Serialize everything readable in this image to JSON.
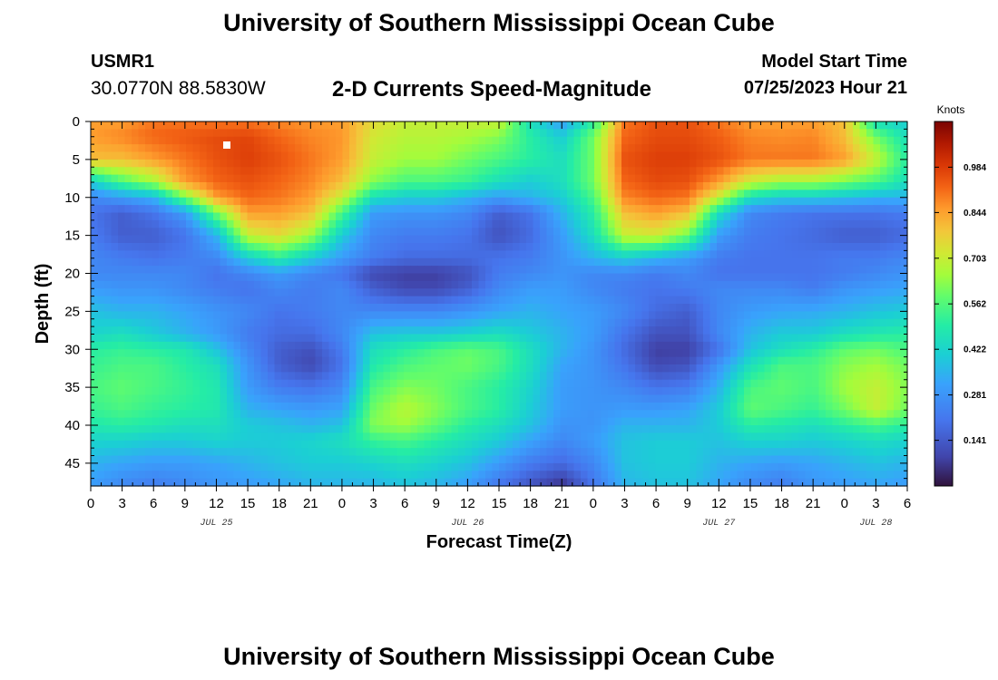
{
  "header": {
    "title": "University of Southern Mississippi Ocean Cube",
    "station_id": "USMR1",
    "coords": "30.0770N  88.5830W",
    "chart_title": "2-D Currents Speed-Magnitude",
    "model_start_label": "Model Start Time",
    "model_start_value": "07/25/2023 Hour 21"
  },
  "footer": {
    "title": "University of Southern Mississippi Ocean Cube"
  },
  "chart_data": {
    "type": "heatmap",
    "title": "2-D Currents Speed-Magnitude",
    "xlabel": "Forecast Time(Z)",
    "ylabel": "Depth (ft)",
    "x_tick_labels": [
      "0",
      "3",
      "6",
      "9",
      "12",
      "15",
      "18",
      "21",
      "0",
      "3",
      "6",
      "9",
      "12",
      "15",
      "18",
      "21",
      "0",
      "3",
      "6",
      "9",
      "12",
      "15",
      "18",
      "21",
      "0",
      "3",
      "6"
    ],
    "x_date_labels": [
      {
        "label": "JUL 25",
        "hour": 12
      },
      {
        "label": "JUL 26",
        "hour": 36
      },
      {
        "label": "JUL 27",
        "hour": 60
      },
      {
        "label": "JUL 28",
        "hour": 75
      }
    ],
    "xlim_hours": [
      0,
      78
    ],
    "y_ticks": [
      0,
      5,
      10,
      15,
      20,
      25,
      30,
      35,
      40,
      45
    ],
    "ylim": [
      0,
      48
    ],
    "y_inverted": true,
    "colorbar": {
      "units": "Knots",
      "ticks": [
        0.984,
        0.844,
        0.703,
        0.562,
        0.422,
        0.281,
        0.141
      ],
      "range": [
        0.0,
        1.125
      ]
    },
    "grid_hours": [
      0,
      3,
      6,
      9,
      12,
      15,
      18,
      21,
      24,
      27,
      30,
      33,
      36,
      39,
      42,
      45,
      48,
      51,
      54,
      57,
      60,
      63,
      66,
      69,
      72,
      75,
      78
    ],
    "grid_depths": [
      0,
      2,
      5,
      8,
      10,
      12,
      15,
      18,
      20,
      22,
      25,
      28,
      30,
      32,
      35,
      38,
      40,
      42,
      45,
      48
    ],
    "speed_knots": [
      [
        0.85,
        0.85,
        0.9,
        0.9,
        0.9,
        0.9,
        0.88,
        0.86,
        0.85,
        0.75,
        0.7,
        0.7,
        0.7,
        0.7,
        0.45,
        0.3,
        0.5,
        0.9,
        0.95,
        0.95,
        0.9,
        0.85,
        0.85,
        0.85,
        0.8,
        0.45,
        0.4
      ],
      [
        0.85,
        0.88,
        0.92,
        0.94,
        0.96,
        0.97,
        0.92,
        0.88,
        0.86,
        0.72,
        0.68,
        0.68,
        0.66,
        0.62,
        0.5,
        0.4,
        0.6,
        0.92,
        0.96,
        0.96,
        0.93,
        0.88,
        0.87,
        0.88,
        0.8,
        0.6,
        0.45
      ],
      [
        0.8,
        0.8,
        0.85,
        0.9,
        0.95,
        0.98,
        0.95,
        0.9,
        0.85,
        0.7,
        0.65,
        0.65,
        0.6,
        0.55,
        0.5,
        0.45,
        0.6,
        0.95,
        0.98,
        0.98,
        0.95,
        0.9,
        0.9,
        0.9,
        0.85,
        0.7,
        0.5
      ],
      [
        0.4,
        0.55,
        0.65,
        0.85,
        0.92,
        0.95,
        0.92,
        0.88,
        0.8,
        0.62,
        0.55,
        0.55,
        0.52,
        0.45,
        0.4,
        0.45,
        0.6,
        0.92,
        0.96,
        0.95,
        0.85,
        0.7,
        0.65,
        0.65,
        0.6,
        0.55,
        0.45
      ],
      [
        0.25,
        0.3,
        0.35,
        0.6,
        0.85,
        0.92,
        0.9,
        0.85,
        0.7,
        0.45,
        0.4,
        0.4,
        0.35,
        0.3,
        0.35,
        0.4,
        0.55,
        0.88,
        0.92,
        0.9,
        0.7,
        0.45,
        0.4,
        0.4,
        0.38,
        0.35,
        0.35
      ],
      [
        0.2,
        0.15,
        0.2,
        0.3,
        0.6,
        0.85,
        0.85,
        0.8,
        0.55,
        0.3,
        0.28,
        0.28,
        0.25,
        0.15,
        0.2,
        0.35,
        0.5,
        0.8,
        0.85,
        0.8,
        0.45,
        0.25,
        0.22,
        0.2,
        0.2,
        0.2,
        0.22
      ],
      [
        0.22,
        0.15,
        0.15,
        0.2,
        0.35,
        0.7,
        0.75,
        0.65,
        0.4,
        0.25,
        0.22,
        0.22,
        0.2,
        0.12,
        0.18,
        0.3,
        0.45,
        0.7,
        0.72,
        0.6,
        0.3,
        0.22,
        0.2,
        0.18,
        0.15,
        0.15,
        0.18
      ],
      [
        0.25,
        0.22,
        0.2,
        0.22,
        0.25,
        0.4,
        0.5,
        0.4,
        0.3,
        0.22,
        0.18,
        0.18,
        0.18,
        0.2,
        0.22,
        0.28,
        0.35,
        0.4,
        0.35,
        0.3,
        0.22,
        0.2,
        0.2,
        0.2,
        0.22,
        0.22,
        0.25
      ],
      [
        0.25,
        0.25,
        0.25,
        0.25,
        0.2,
        0.25,
        0.3,
        0.25,
        0.2,
        0.1,
        0.08,
        0.08,
        0.12,
        0.22,
        0.25,
        0.28,
        0.25,
        0.25,
        0.22,
        0.25,
        0.2,
        0.2,
        0.2,
        0.2,
        0.22,
        0.25,
        0.28
      ],
      [
        0.3,
        0.28,
        0.28,
        0.25,
        0.22,
        0.2,
        0.25,
        0.22,
        0.25,
        0.15,
        0.1,
        0.1,
        0.15,
        0.25,
        0.3,
        0.3,
        0.25,
        0.22,
        0.2,
        0.22,
        0.25,
        0.25,
        0.25,
        0.22,
        0.28,
        0.3,
        0.32
      ],
      [
        0.38,
        0.35,
        0.35,
        0.32,
        0.28,
        0.25,
        0.2,
        0.22,
        0.25,
        0.25,
        0.25,
        0.25,
        0.28,
        0.32,
        0.35,
        0.32,
        0.3,
        0.25,
        0.18,
        0.15,
        0.25,
        0.3,
        0.32,
        0.33,
        0.35,
        0.38,
        0.4
      ],
      [
        0.42,
        0.45,
        0.4,
        0.35,
        0.3,
        0.22,
        0.18,
        0.18,
        0.25,
        0.38,
        0.4,
        0.4,
        0.42,
        0.45,
        0.4,
        0.35,
        0.3,
        0.2,
        0.12,
        0.12,
        0.25,
        0.35,
        0.4,
        0.4,
        0.45,
        0.48,
        0.5
      ],
      [
        0.5,
        0.52,
        0.5,
        0.48,
        0.38,
        0.25,
        0.15,
        0.12,
        0.22,
        0.45,
        0.5,
        0.55,
        0.58,
        0.55,
        0.45,
        0.35,
        0.28,
        0.18,
        0.08,
        0.08,
        0.2,
        0.38,
        0.45,
        0.5,
        0.58,
        0.6,
        0.55
      ],
      [
        0.52,
        0.55,
        0.55,
        0.5,
        0.45,
        0.28,
        0.15,
        0.1,
        0.2,
        0.48,
        0.55,
        0.58,
        0.6,
        0.55,
        0.45,
        0.32,
        0.28,
        0.2,
        0.1,
        0.12,
        0.28,
        0.45,
        0.55,
        0.55,
        0.62,
        0.65,
        0.6
      ],
      [
        0.55,
        0.58,
        0.55,
        0.52,
        0.48,
        0.3,
        0.22,
        0.2,
        0.25,
        0.55,
        0.62,
        0.6,
        0.55,
        0.5,
        0.42,
        0.3,
        0.28,
        0.25,
        0.2,
        0.22,
        0.35,
        0.55,
        0.58,
        0.55,
        0.65,
        0.7,
        0.62
      ],
      [
        0.52,
        0.55,
        0.52,
        0.5,
        0.48,
        0.35,
        0.32,
        0.3,
        0.32,
        0.6,
        0.68,
        0.62,
        0.55,
        0.5,
        0.4,
        0.3,
        0.28,
        0.3,
        0.3,
        0.32,
        0.4,
        0.58,
        0.55,
        0.52,
        0.6,
        0.7,
        0.6
      ],
      [
        0.48,
        0.5,
        0.48,
        0.45,
        0.45,
        0.4,
        0.38,
        0.35,
        0.38,
        0.62,
        0.65,
        0.58,
        0.5,
        0.45,
        0.38,
        0.28,
        0.28,
        0.35,
        0.35,
        0.35,
        0.4,
        0.5,
        0.48,
        0.45,
        0.5,
        0.55,
        0.5
      ],
      [
        0.42,
        0.42,
        0.4,
        0.4,
        0.42,
        0.4,
        0.4,
        0.42,
        0.45,
        0.52,
        0.55,
        0.5,
        0.45,
        0.4,
        0.32,
        0.25,
        0.3,
        0.38,
        0.4,
        0.4,
        0.38,
        0.42,
        0.42,
        0.4,
        0.42,
        0.45,
        0.42
      ],
      [
        0.35,
        0.32,
        0.3,
        0.3,
        0.32,
        0.35,
        0.38,
        0.4,
        0.4,
        0.42,
        0.45,
        0.42,
        0.38,
        0.3,
        0.22,
        0.18,
        0.25,
        0.38,
        0.4,
        0.4,
        0.35,
        0.32,
        0.3,
        0.32,
        0.35,
        0.38,
        0.35
      ],
      [
        0.3,
        0.25,
        0.22,
        0.25,
        0.28,
        0.3,
        0.32,
        0.35,
        0.35,
        0.35,
        0.38,
        0.35,
        0.3,
        0.2,
        0.12,
        0.05,
        0.2,
        0.35,
        0.38,
        0.38,
        0.32,
        0.25,
        0.22,
        0.28,
        0.3,
        0.32,
        0.3
      ]
    ]
  }
}
